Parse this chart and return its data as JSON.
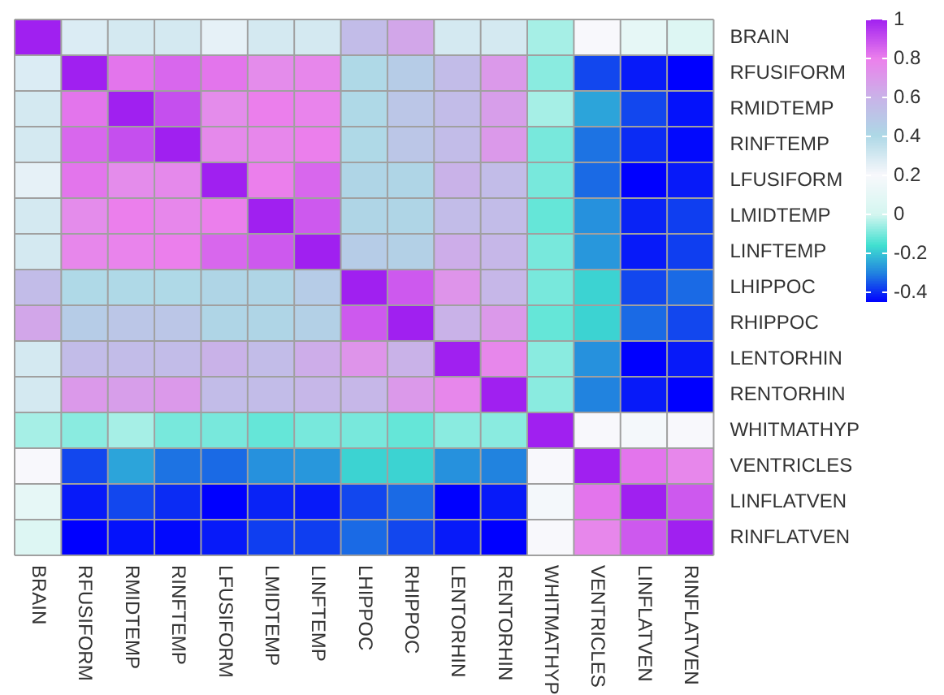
{
  "chart_data": {
    "type": "heatmap",
    "categories": [
      "BRAIN",
      "RFUSIFORM",
      "RMIDTEMP",
      "RINFTEMP",
      "LFUSIFORM",
      "LMIDTEMP",
      "LINFTEMP",
      "LHIPPOC",
      "RHIPPOC",
      "LENTORHIN",
      "RENTORHIN",
      "WHITMATHYP",
      "VENTRICLES",
      "LINFLATVEN",
      "RINFLATVEN"
    ],
    "y_categories": [
      "BRAIN",
      "RFUSIFORM",
      "RMIDTEMP",
      "RINFTEMP",
      "LFUSIFORM",
      "LMIDTEMP",
      "LINFTEMP",
      "LHIPPOC",
      "RHIPPOC",
      "LENTORHIN",
      "RENTORHIN",
      "WHITMATHYP",
      "VENTRICLES",
      "LINFLATVEN",
      "RINFLATVEN"
    ],
    "cells": [
      [
        1,
        0.28,
        0.3,
        0.3,
        0.25,
        0.3,
        0.3,
        0.55,
        0.65,
        0.3,
        0.3,
        -0.05,
        0.2,
        0.1,
        0.05
      ],
      [
        0.28,
        1,
        0.82,
        0.85,
        0.82,
        0.75,
        0.77,
        0.4,
        0.47,
        0.55,
        0.7,
        -0.08,
        -0.37,
        -0.42,
        -0.45
      ],
      [
        0.3,
        0.82,
        1,
        0.9,
        0.75,
        0.8,
        0.78,
        0.4,
        0.5,
        0.55,
        0.68,
        -0.05,
        -0.25,
        -0.37,
        -0.43
      ],
      [
        0.3,
        0.85,
        0.9,
        1,
        0.76,
        0.77,
        0.8,
        0.4,
        0.5,
        0.55,
        0.7,
        -0.1,
        -0.32,
        -0.4,
        -0.44
      ],
      [
        0.25,
        0.82,
        0.75,
        0.76,
        1,
        0.8,
        0.85,
        0.42,
        0.42,
        0.6,
        0.55,
        -0.1,
        -0.33,
        -0.45,
        -0.42
      ],
      [
        0.3,
        0.75,
        0.8,
        0.77,
        0.8,
        1,
        0.88,
        0.42,
        0.42,
        0.55,
        0.55,
        -0.12,
        -0.28,
        -0.41,
        -0.38
      ],
      [
        0.3,
        0.77,
        0.78,
        0.8,
        0.85,
        0.88,
        1,
        0.47,
        0.45,
        0.62,
        0.58,
        -0.1,
        -0.27,
        -0.42,
        -0.38
      ],
      [
        0.55,
        0.4,
        0.4,
        0.4,
        0.42,
        0.42,
        0.47,
        1,
        0.88,
        0.72,
        0.58,
        -0.1,
        -0.18,
        -0.37,
        -0.33
      ],
      [
        0.65,
        0.47,
        0.5,
        0.5,
        0.42,
        0.42,
        0.45,
        0.88,
        1,
        0.6,
        0.7,
        -0.12,
        -0.18,
        -0.33,
        -0.37
      ],
      [
        0.3,
        0.55,
        0.55,
        0.55,
        0.6,
        0.55,
        0.62,
        0.72,
        0.6,
        1,
        0.77,
        -0.08,
        -0.28,
        -0.45,
        -0.42
      ],
      [
        0.3,
        0.7,
        0.68,
        0.7,
        0.55,
        0.55,
        0.58,
        0.58,
        0.7,
        0.77,
        1,
        -0.08,
        -0.3,
        -0.42,
        -0.45
      ],
      [
        -0.05,
        -0.08,
        -0.05,
        -0.1,
        -0.1,
        -0.12,
        -0.1,
        -0.1,
        -0.12,
        -0.08,
        -0.08,
        1,
        0.2,
        0.18,
        0.2
      ],
      [
        0.2,
        -0.37,
        -0.25,
        -0.32,
        -0.33,
        -0.28,
        -0.27,
        -0.18,
        -0.18,
        -0.28,
        -0.3,
        0.2,
        1,
        0.82,
        0.77
      ],
      [
        0.1,
        -0.42,
        -0.37,
        -0.4,
        -0.45,
        -0.41,
        -0.42,
        -0.37,
        -0.33,
        -0.45,
        -0.42,
        0.18,
        0.82,
        1,
        0.88
      ],
      [
        0.05,
        -0.45,
        -0.43,
        -0.44,
        -0.42,
        -0.38,
        -0.38,
        -0.33,
        -0.37,
        -0.42,
        -0.45,
        0.2,
        0.77,
        0.88,
        1
      ]
    ],
    "clim": [
      -0.45,
      1
    ],
    "cticks": [
      -0.4,
      -0.2,
      0,
      0.2,
      0.4,
      0.6,
      0.8,
      1
    ]
  }
}
